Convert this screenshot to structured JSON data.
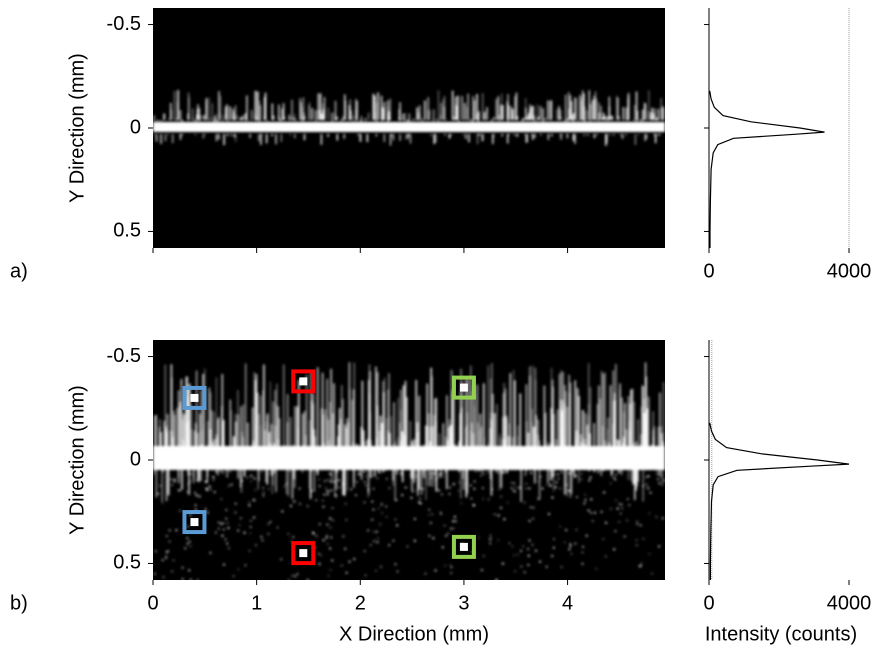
{
  "chart_data": [
    {
      "type": "image",
      "panel_label": "a)",
      "y_label": "Y Direction (mm)",
      "xlim": [
        0,
        4.94
      ],
      "ylim": [
        -0.58,
        0.58
      ],
      "y_inverted": true,
      "xticks": [
        0,
        1,
        2,
        3,
        4
      ],
      "show_xtick_labels": false,
      "yticks": [
        -0.5,
        0,
        0.5
      ],
      "band_spread": "narrow"
    },
    {
      "type": "profile",
      "xlim": [
        0,
        4000
      ],
      "ylim": [
        -0.58,
        0.58
      ],
      "y_inverted": true,
      "xticks": [
        0,
        4000
      ],
      "yticks": [
        -0.5,
        0,
        0.5
      ],
      "show_ytick_labels": false,
      "reference_line_x": 4000,
      "series": [
        {
          "color": "#000000",
          "positions": [
            -0.18,
            -0.14,
            -0.1,
            -0.06,
            -0.03,
            0,
            0.02,
            0.03,
            0.05,
            0.08,
            0.12,
            0.2,
            0.35,
            0.5,
            0.58
          ],
          "values": [
            20,
            60,
            150,
            400,
            1200,
            2600,
            3300,
            2500,
            700,
            250,
            120,
            60,
            40,
            30,
            30
          ]
        }
      ]
    },
    {
      "type": "image",
      "panel_label": "b)",
      "y_label": "Y Direction (mm)",
      "x_label": "X Direction (mm)",
      "xlim": [
        0,
        4.94
      ],
      "ylim": [
        -0.58,
        0.58
      ],
      "y_inverted": true,
      "xticks": [
        0,
        1,
        2,
        3,
        4
      ],
      "show_xtick_labels": true,
      "yticks": [
        -0.5,
        0,
        0.5
      ],
      "band_spread": "wide",
      "markers": [
        {
          "x": 0.4,
          "y": -0.3,
          "color": "#5b9bd5"
        },
        {
          "x": 0.4,
          "y": 0.3,
          "color": "#5b9bd5"
        },
        {
          "x": 1.45,
          "y": -0.38,
          "color": "#ff0000"
        },
        {
          "x": 1.45,
          "y": 0.45,
          "color": "#ff0000"
        },
        {
          "x": 3.0,
          "y": -0.35,
          "color": "#92d050"
        },
        {
          "x": 3.0,
          "y": 0.42,
          "color": "#92d050"
        }
      ]
    },
    {
      "type": "profile",
      "x_label": "Intensity (counts)",
      "xlim": [
        0,
        4000
      ],
      "ylim": [
        -0.58,
        0.58
      ],
      "y_inverted": true,
      "xticks": [
        0,
        4000
      ],
      "yticks": [
        -0.5,
        0,
        0.5
      ],
      "show_ytick_labels": false,
      "reference_line_x": 80,
      "series": [
        {
          "color": "#000000",
          "positions": [
            -0.18,
            -0.14,
            -0.1,
            -0.06,
            -0.03,
            0,
            0.02,
            0.03,
            0.05,
            0.08,
            0.12,
            0.2,
            0.35,
            0.5,
            0.58
          ],
          "values": [
            20,
            70,
            180,
            500,
            1500,
            3100,
            4000,
            2900,
            800,
            260,
            120,
            70,
            50,
            40,
            40
          ]
        }
      ]
    }
  ]
}
